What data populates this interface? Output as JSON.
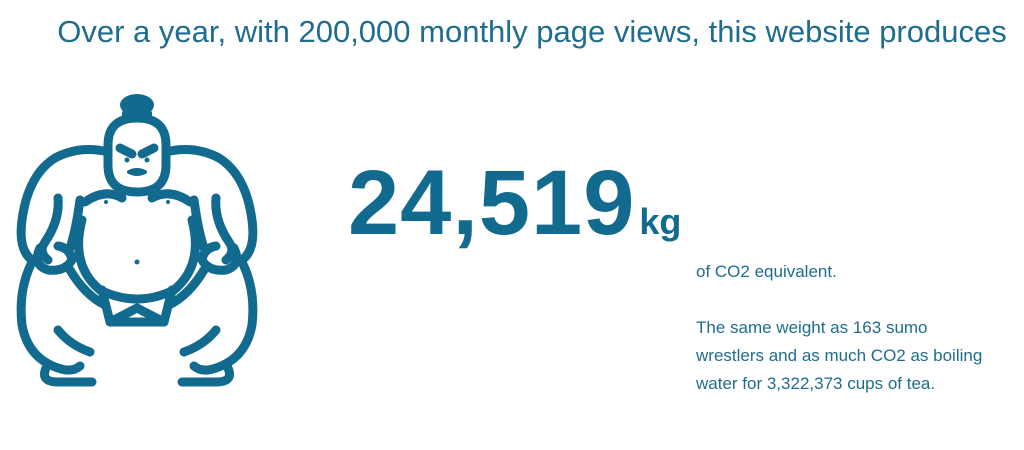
{
  "headline": "Over a year, with 200,000 monthly page views, this website produces",
  "result": {
    "value": "24,519",
    "unit": "kg",
    "subtitle": "of CO2 equivalent.",
    "equivalence": "The same weight as 163 sumo wrestlers and as much CO2 as boiling water for 3,322,373 cups of tea."
  },
  "illustration": {
    "icon": "sumo-wrestler-icon",
    "color": "#126b8f"
  },
  "colors": {
    "accent": "#126b8f",
    "text": "#1e6d8e",
    "background": "#ffffff"
  }
}
